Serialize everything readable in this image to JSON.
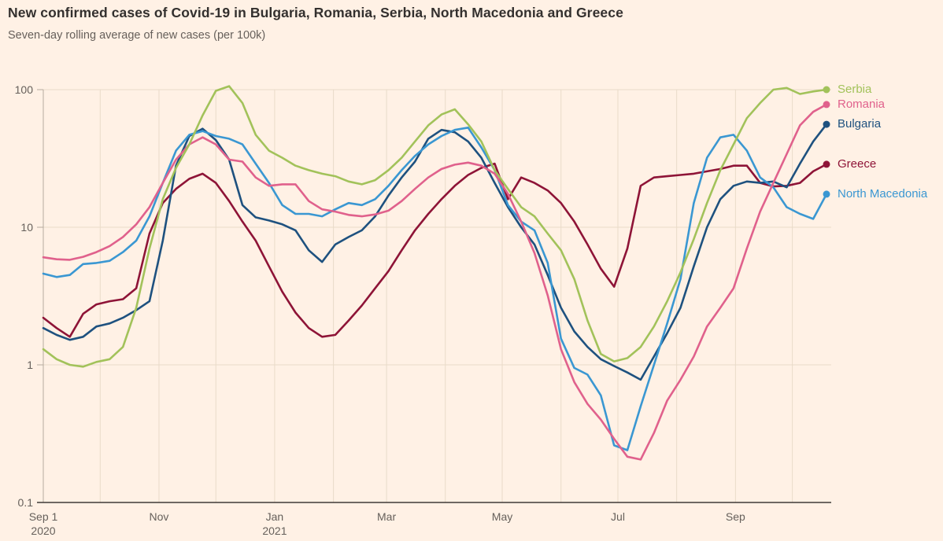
{
  "header": {
    "title": "New confirmed cases of Covid-19 in Bulgaria, Romania, Serbia, North Macedonia and Greece",
    "subtitle": "Seven-day rolling average of new cases (per 100k)"
  },
  "colors": {
    "background": "#fff1e5",
    "title_text": "#33302e",
    "axis_text": "#66605b",
    "gridline": "#e9dbc9",
    "spine": "#b5ab9e",
    "baseline": "#3f3a37"
  },
  "chart_data": {
    "type": "line",
    "title": "New confirmed cases of Covid-19 in Bulgaria, Romania, Serbia, North Macedonia and Greece",
    "subtitle": "Seven-day rolling average of new cases (per 100k)",
    "y_scale": "log",
    "ylim": [
      0.1,
      130
    ],
    "grid": true,
    "legend_position": "right-of-line-ends",
    "x_unit": "weekly samples starting Sep 1 2020, 7-day step",
    "y_ticks": [
      {
        "label": "100",
        "value": 100,
        "gridline": true
      },
      {
        "label": "10",
        "value": 10,
        "gridline": true
      },
      {
        "label": "1",
        "value": 1,
        "gridline": true
      },
      {
        "label": "0.1",
        "value": 0.1,
        "gridline": false
      }
    ],
    "x_ticks": [
      {
        "label": "Sep 1",
        "sublabel": "2020",
        "day": 0
      },
      {
        "label": "Nov",
        "sublabel": "",
        "day": 61
      },
      {
        "label": "Jan",
        "sublabel": "2021",
        "day": 122
      },
      {
        "label": "Mar",
        "sublabel": "",
        "day": 181
      },
      {
        "label": "May",
        "sublabel": "",
        "day": 242
      },
      {
        "label": "Jul",
        "sublabel": "",
        "day": 303
      },
      {
        "label": "Sep",
        "sublabel": "",
        "day": 365
      }
    ],
    "month_gridline_days": [
      30,
      61,
      91,
      122,
      153,
      181,
      212,
      242,
      273,
      303,
      334,
      365,
      395
    ],
    "series": [
      {
        "name": "Greece",
        "color": "#8e1437",
        "values": [
          2.2,
          1.85,
          1.6,
          2.35,
          2.75,
          2.9,
          3.0,
          3.6,
          9,
          15,
          19,
          22.5,
          24.5,
          21,
          15.5,
          11,
          8,
          5.2,
          3.4,
          2.4,
          1.85,
          1.6,
          1.65,
          2.1,
          2.7,
          3.6,
          4.8,
          6.8,
          9.5,
          12.5,
          16,
          20,
          24,
          27,
          29,
          16,
          23,
          21,
          18.5,
          15,
          11,
          7.5,
          5,
          3.7,
          7,
          20,
          23,
          23.5,
          24,
          24.5,
          25.5,
          26.5,
          28,
          28,
          21,
          19.8,
          20,
          21,
          25.5,
          28.7
        ]
      },
      {
        "name": "Bulgaria",
        "color": "#1e517f",
        "values": [
          1.85,
          1.65,
          1.52,
          1.6,
          1.9,
          2.0,
          2.2,
          2.5,
          2.9,
          8,
          28,
          46,
          52,
          43,
          31,
          14.5,
          11.8,
          11.2,
          10.5,
          9.5,
          6.8,
          5.6,
          7.5,
          8.5,
          9.5,
          12,
          17,
          23,
          30,
          44,
          51,
          49,
          42,
          32,
          21,
          14,
          10,
          7.5,
          4.5,
          2.6,
          1.75,
          1.35,
          1.1,
          0.98,
          0.88,
          0.78,
          1.15,
          1.7,
          2.6,
          5.2,
          10,
          16,
          20,
          21.5,
          21,
          21.5,
          19.5,
          29,
          42,
          56
        ]
      },
      {
        "name": "North Macedonia",
        "color": "#3a97d2",
        "values": [
          4.6,
          4.35,
          4.5,
          5.4,
          5.5,
          5.7,
          6.6,
          8,
          12,
          21,
          36,
          47,
          50,
          46,
          44,
          40,
          29,
          21,
          14.5,
          12.5,
          12.5,
          12,
          13.5,
          15,
          14.5,
          16,
          20,
          26,
          33,
          40,
          46,
          51,
          53,
          38,
          26,
          14.5,
          11,
          9.5,
          5.5,
          1.55,
          0.95,
          0.85,
          0.6,
          0.26,
          0.24,
          0.5,
          1.0,
          2.0,
          4.2,
          15,
          32,
          45,
          47,
          36,
          23,
          19.5,
          14,
          12.5,
          11.5,
          17.4
        ]
      },
      {
        "name": "Romania",
        "color": "#e0618c",
        "values": [
          6.05,
          5.85,
          5.8,
          6.1,
          6.6,
          7.3,
          8.5,
          10.5,
          14,
          21,
          31,
          40,
          45,
          40,
          31,
          30,
          23,
          20,
          20.5,
          20.5,
          15.5,
          13.5,
          13,
          12.3,
          12,
          12.4,
          13.2,
          15.5,
          19,
          23,
          26.5,
          28.5,
          29.5,
          28,
          24.5,
          17.5,
          11,
          6.5,
          3.2,
          1.3,
          0.75,
          0.52,
          0.4,
          0.29,
          0.215,
          0.205,
          0.32,
          0.55,
          0.78,
          1.15,
          1.9,
          2.6,
          3.6,
          7,
          13,
          21,
          34,
          55,
          69,
          78
        ]
      },
      {
        "name": "Serbia",
        "color": "#a2c25a",
        "values": [
          1.3,
          1.1,
          1.0,
          0.97,
          1.05,
          1.1,
          1.35,
          2.6,
          7,
          16,
          27,
          40,
          65,
          98,
          106,
          80,
          47,
          36,
          32,
          28,
          26,
          24.5,
          23.5,
          21.5,
          20.5,
          22,
          26,
          32,
          42,
          55,
          66,
          72,
          56,
          42,
          26,
          19,
          14,
          12,
          9,
          6.8,
          4.2,
          2.1,
          1.2,
          1.06,
          1.12,
          1.35,
          1.9,
          2.9,
          4.7,
          8.2,
          15,
          26,
          40,
          62,
          80,
          100,
          103,
          93,
          97,
          100
        ]
      }
    ],
    "legend_order": [
      "Serbia",
      "Romania",
      "Bulgaria",
      "Greece",
      "North Macedonia"
    ]
  }
}
